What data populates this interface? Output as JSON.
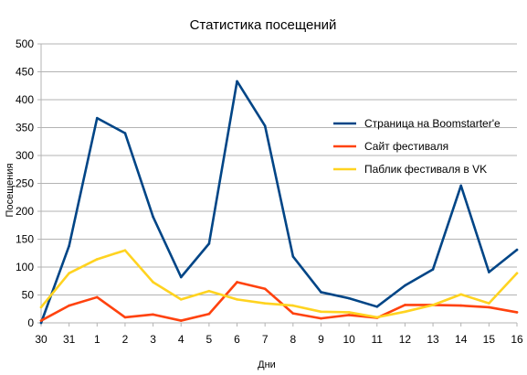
{
  "chart_data": {
    "type": "line",
    "title": "Статистика посещений",
    "xlabel": "Дни",
    "ylabel": "Посещения",
    "categories": [
      "30",
      "31",
      "1",
      "2",
      "3",
      "4",
      "5",
      "6",
      "7",
      "8",
      "9",
      "10",
      "11",
      "12",
      "13",
      "14",
      "15",
      "16"
    ],
    "ylim": [
      0,
      500
    ],
    "yticks": [
      0,
      50,
      100,
      150,
      200,
      250,
      300,
      350,
      400,
      450,
      500
    ],
    "grid": true,
    "legend_position": "right",
    "series": [
      {
        "name": "Страница на Boomstarter'е",
        "color": "#004586",
        "values": [
          0,
          138,
          367,
          340,
          190,
          82,
          142,
          433,
          353,
          119,
          55,
          44,
          29,
          67,
          96,
          246,
          91,
          131
        ]
      },
      {
        "name": "Сайт фестиваля",
        "color": "#ff420e",
        "values": [
          4,
          31,
          46,
          10,
          15,
          4,
          16,
          73,
          61,
          17,
          8,
          14,
          9,
          32,
          32,
          31,
          28,
          19
        ]
      },
      {
        "name": "Паблик фестиваля в VK",
        "color": "#ffd320",
        "values": [
          28,
          89,
          114,
          130,
          73,
          42,
          57,
          42,
          35,
          31,
          20,
          19,
          10,
          20,
          32,
          51,
          35,
          89
        ]
      }
    ]
  }
}
